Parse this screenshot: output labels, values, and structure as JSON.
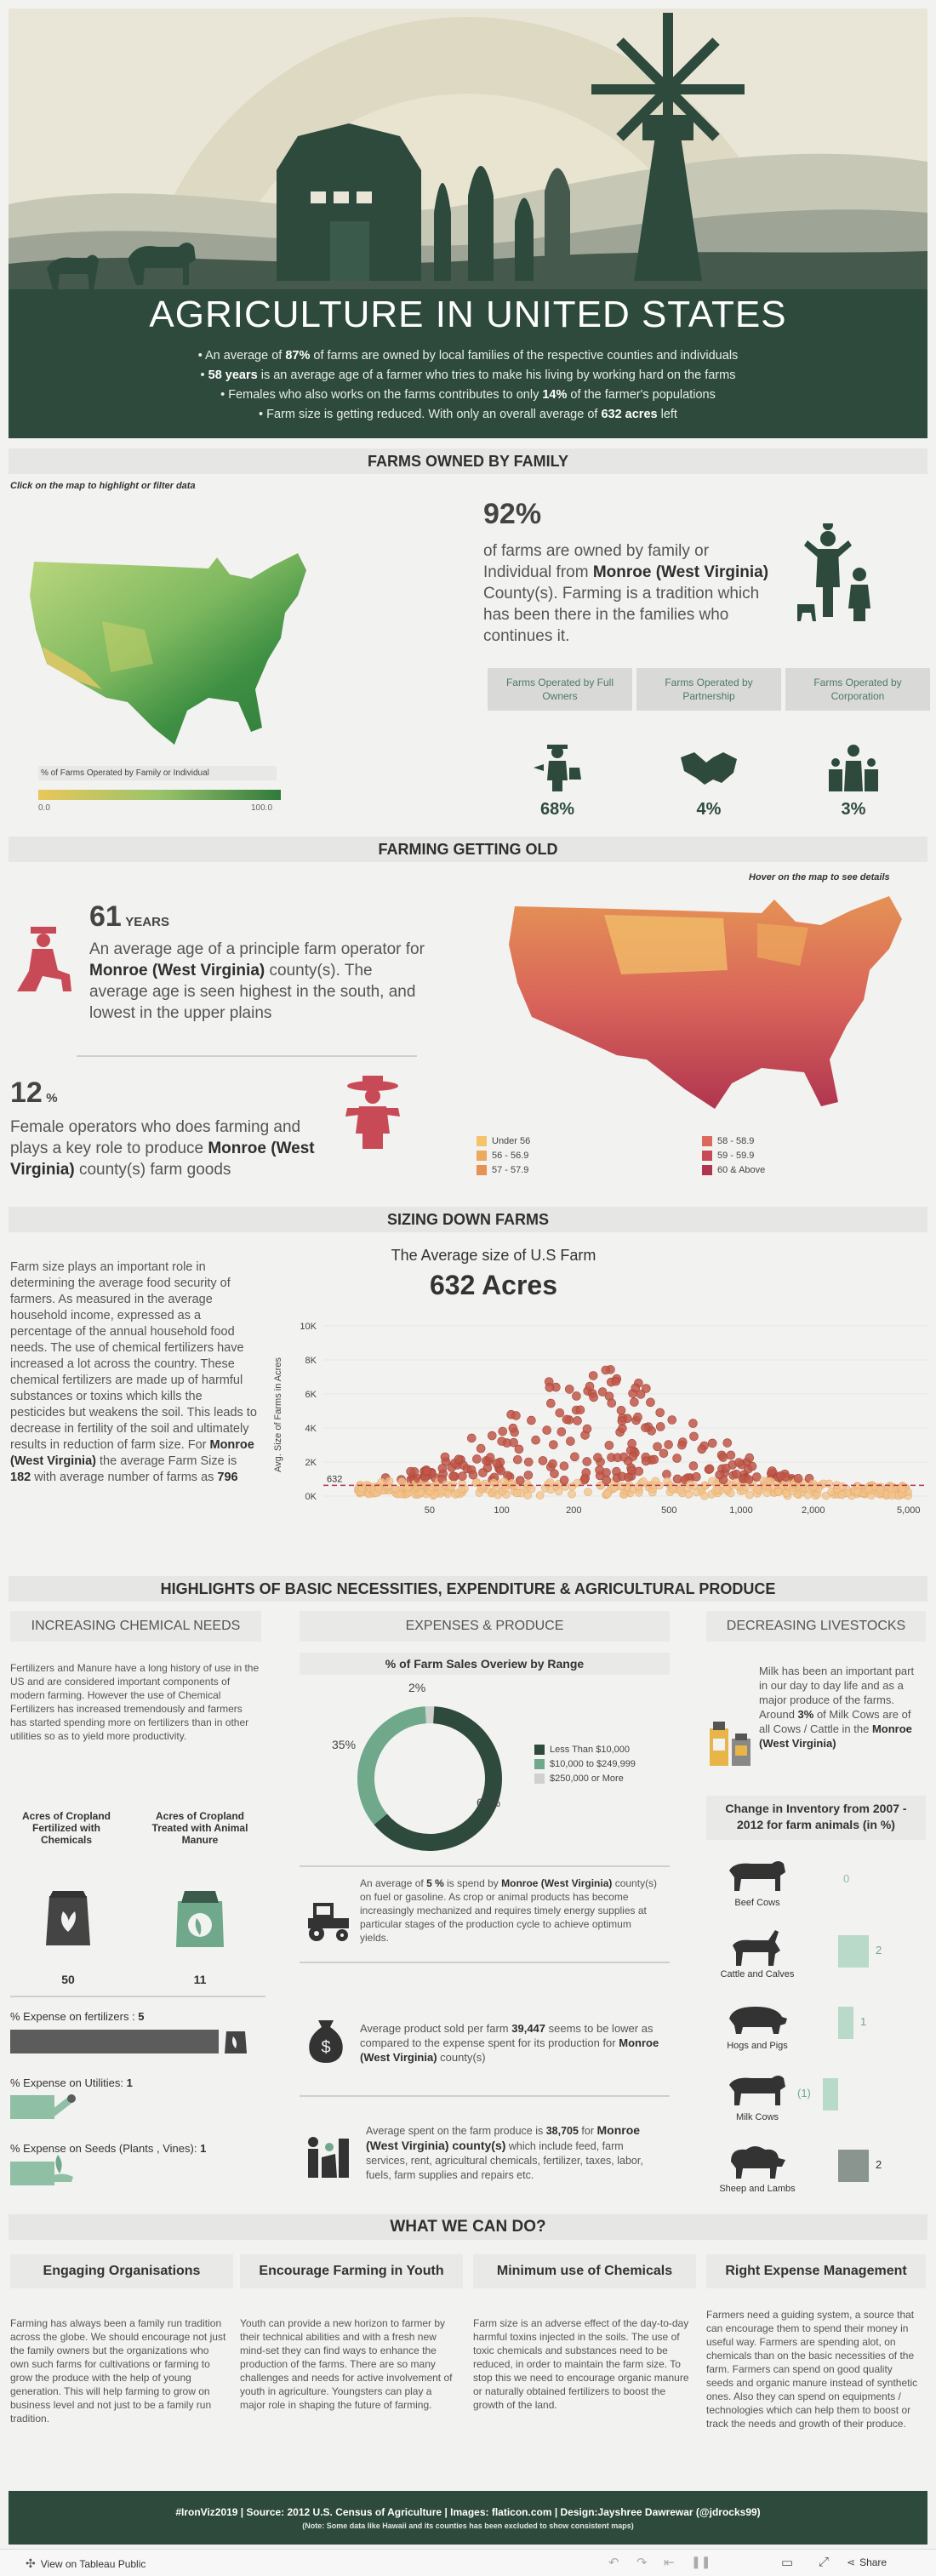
{
  "hero": {
    "title": "AGRICULTURE IN UNITED STATES",
    "bullets": [
      {
        "pre": "• An average of ",
        "bold": "87%",
        "post": " of farms are owned by local families of the respective counties and individuals"
      },
      {
        "pre": "• ",
        "bold": "58 years",
        "post": " is an average age of a farmer who tries to make his living by working hard on the farms"
      },
      {
        "pre": "• Females who also works on the farms contributes to only ",
        "bold": "14%",
        "post": " of the farmer's populations"
      },
      {
        "pre": "• Farm size is getting reduced. With only an overall average of ",
        "bold": "632 acres",
        "post": " left"
      }
    ]
  },
  "family": {
    "header": "FARMS OWNED BY FAMILY",
    "hint": "Click on the map to highlight or filter data",
    "map_legend_title": "% of Farms Operated by Family or Individual",
    "map_legend_min": "0.0",
    "map_legend_max": "100.0",
    "big_pct": "92%",
    "desc_pre": "of farms are  owned by family or Individual from ",
    "desc_bold": "Monroe (West Virginia)",
    "desc_post": " County(s). Farming is a tradition which has been there in the families who continues it.",
    "pills": [
      "Farms Operated by Full Owners",
      "Farms Operated by Partnership",
      "Farms Operated by Corporation"
    ],
    "values": [
      "68%",
      "4%",
      "3%"
    ],
    "icons": [
      "farmer-watering-icon",
      "handshake-icon",
      "corporation-icon"
    ]
  },
  "old": {
    "header": "FARMING GETTING OLD",
    "hint": "Hover on the map to see details",
    "age_num": "61",
    "age_unit": "YEARS",
    "age_pre": "An average age of a principle farm operator for ",
    "age_bold": "Monroe (West Virginia)",
    "age_post": " county(s). The average age is seen highest in the south, and lowest in the upper plains",
    "fem_num": "12",
    "fem_unit": "%",
    "fem_pre": "Female operators who does farming and plays a key role to produce ",
    "fem_bold": "Monroe (West Virginia)",
    "fem_post": " county(s) farm goods",
    "legend": [
      {
        "label": "Under 56",
        "color": "#f3c46b"
      },
      {
        "label": "56 - 56.9",
        "color": "#ecaa5c"
      },
      {
        "label": "57 - 57.9",
        "color": "#e59255"
      },
      {
        "label": "58 - 58.9",
        "color": "#dc6a5c"
      },
      {
        "label": "59 - 59.9",
        "color": "#c94a57"
      },
      {
        "label": "60 & Above",
        "color": "#b0354f"
      }
    ]
  },
  "sizing": {
    "header": "SIZING DOWN FARMS",
    "para_pre": "Farm size plays an important role in determining the average food security of farmers. As measured in the average household income, expressed as a percentage of the annual household food needs. The use of chemical fertilizers have increased a lot across the country. These chemical fertilizers are made up of harmful substances or toxins which kills the pesticides but weakens the soil. This leads to decrease in fertility of the soil and ultimately results in reduction of farm size. For ",
    "para_bold1": "Monroe (West Virginia)",
    "para_mid": " the average Farm Size is ",
    "para_bold2": "182",
    "para_mid2": " with average number of farms as ",
    "para_bold3": "796",
    "chart_title": "The Average size of U.S Farm",
    "chart_big": "632 Acres"
  },
  "chart_data": {
    "type": "scatter",
    "title": "The Average size of U.S Farm",
    "subtitle": "632 Acres",
    "ylabel": "Avg. Size of Farms in Acres",
    "xlabel": "",
    "xscale": "log",
    "xlim": [
      18,
      6000
    ],
    "ylim": [
      0,
      10000
    ],
    "y_ticks": [
      "0K",
      "2K",
      "4K",
      "6K",
      "8K",
      "10K"
    ],
    "x_ticks": [
      "50",
      "100",
      "200",
      "500",
      "1,000",
      "2,000",
      "5,000"
    ],
    "reference_line": {
      "value": 632,
      "label": "632"
    }
  },
  "highlights": {
    "header": "HIGHLIGHTS OF BASIC NECESSITIES, EXPENDITURE & AGRICULTURAL PRODUCE",
    "col1_title": "INCREASING CHEMICAL NEEDS",
    "col2_title": "EXPENSES & PRODUCE",
    "col3_title": "DECREASING LIVESTOCKS",
    "chem_para": "Fertilizers and Manure have a long history of use in the US and are considered important components of modern farming. However the use of Chemical Fertilizers has increased tremendously and farmers has started spending more on fertilizers than in other utilities so as to yield more productivity.",
    "acres_label1": "Acres of Cropland Fertilized with Chemicals",
    "acres_label2": "Acres of Cropland Treated with Animal Manure",
    "acres_val1": "50",
    "acres_val2": "11",
    "exp_fert_label": "% Expense on fertilizers : ",
    "exp_fert_val": "5",
    "exp_util_label": "% Expense on Utilities: ",
    "exp_util_val": "1",
    "exp_seed_label": "% Expense on Seeds (Plants , Vines): ",
    "exp_seed_val": "1",
    "donut_title": "% of Farm Sales Overiew by Range",
    "donut": [
      {
        "label": "Less Than $10,000",
        "value": 63,
        "pct": "63%",
        "color": "#2d4a3d"
      },
      {
        "label": "$10,000 to $249,999",
        "value": 35,
        "pct": "35%",
        "color": "#6fa88b"
      },
      {
        "label": "$250,000 or More",
        "value": 2,
        "pct": "2%",
        "color": "#d0d0ce"
      }
    ],
    "fuel_pre": "An average of ",
    "fuel_bold1": "5 %",
    "fuel_mid": " is spend by ",
    "fuel_bold2": "Monroe (West Virginia)",
    "fuel_post": " county(s) on fuel or gasoline. As crop or animal products has become increasingly mechanized and requires timely energy supplies at particular stages of the production cycle to achieve optimum yields.",
    "sold_pre": "Average product sold per farm ",
    "sold_bold": "39,447",
    "sold_mid": "  seems to be lower as compared to the expense spent for its production for ",
    "sold_bold2": "Monroe (West Virginia)",
    "sold_post": " county(s)",
    "spent_pre": "Average spent on the farm produce is ",
    "spent_bold": "38,705",
    "spent_mid": " for ",
    "spent_bold2": "Monroe (West Virginia) county(s)",
    "spent_post": " which include feed, farm services, rent, agricultural chemicals, fertilizer, taxes, labor, fuels, farm supplies and repairs etc.",
    "milk_pre": "Milk has been an important part in our day to day life and as a major produce of the farms. Around ",
    "milk_bold": "3%",
    "milk_mid": " of Milk Cows are of all Cows / Cattle in the ",
    "milk_bold2": "Monroe (West Virginia)",
    "inv_title": "Change in Inventory from 2007 - 2012 for farm animals (in %)",
    "animals": [
      {
        "name": "Beef Cows",
        "value": 0,
        "label": "0",
        "icon": "beef-cow-icon"
      },
      {
        "name": "Cattle and Calves",
        "value": 2,
        "label": "2",
        "icon": "goat-icon"
      },
      {
        "name": "Hogs and Pigs",
        "value": 1,
        "label": "1",
        "icon": "pig-icon"
      },
      {
        "name": "Milk Cows",
        "value": -1,
        "label": "(1)",
        "icon": "milk-cow-icon"
      },
      {
        "name": "Sheep and Lambs",
        "value": 2,
        "label": "2",
        "icon": "sheep-icon"
      }
    ]
  },
  "whatcan": {
    "header": "WHAT WE CAN DO?",
    "cols": [
      {
        "title": "Engaging Organisations",
        "text": "Farming has always been a family run tradition across the globe. We should encourage not just the family owners but the organizations who own such farms for cultivations or farming to grow the produce with the help of young generation. This will help farming to grow on business level and not just to be a family run tradition."
      },
      {
        "title": "Encourage Farming in Youth",
        "text": "Youth can provide a new horizon to farmer by their technical abilities and with a fresh new mind-set they can find ways to enhance the production of the farms. There are so many challenges and needs for active involvement of youth in agriculture. Youngsters can play a major role in shaping the future of farming."
      },
      {
        "title": "Minimum use of Chemicals",
        "text": "Farm size is an adverse effect of the day-to-day harmful toxins injected in the soils. The use of toxic chemicals and substances need to be reduced, in order to maintain the farm size. To stop this we need to encourage organic manure or naturally obtained fertilizers to boost the growth of the land."
      },
      {
        "title": "Right Expense Management",
        "text": "Farmers need a guiding system, a source that can encourage them to spend their money in useful way. Farmers are spending alot, on chemicals than on the basic necessities of the farm. Farmers can spend on good quality seeds and organic manure instead of synthetic ones. Also they can spend on equipments / technologies which can help them to boost or track the needs and growth of their produce."
      }
    ]
  },
  "footer": {
    "line1": "#IronViz2019 | Source: 2012 U.S. Census of Agriculture | Images: flaticon.com | Design:Jayshree Dawrewar (@jdrocks99)",
    "line2": "(Note: Some data like Hawaii and its counties has been excluded to show consistent maps)"
  },
  "toolbar": {
    "view_label": "View on Tableau Public",
    "share_label": "Share"
  }
}
